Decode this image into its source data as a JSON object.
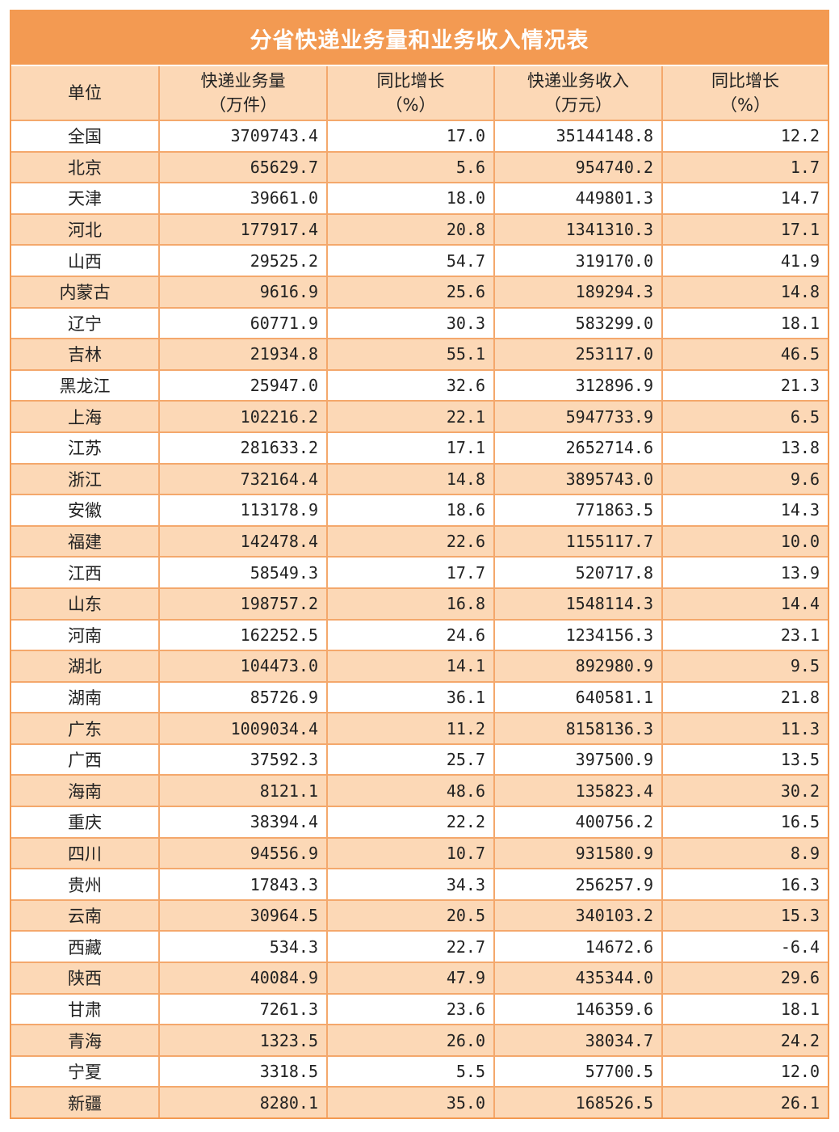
{
  "title": "分省快递业务量和业务收入情况表",
  "colors": {
    "accent": "#F39A52",
    "stripe": "#FCD8B6",
    "border": "#F4A86C"
  },
  "headers": [
    {
      "l1": "单位",
      "l2": ""
    },
    {
      "l1": "快递业务量",
      "l2": "（万件）"
    },
    {
      "l1": "同比增长",
      "l2": "（%）"
    },
    {
      "l1": "快递业务收入",
      "l2": "（万元）"
    },
    {
      "l1": "同比增长",
      "l2": "（%）"
    }
  ],
  "rows": [
    [
      "全国",
      "3709743.4",
      "17.0",
      "35144148.8",
      "12.2"
    ],
    [
      "北京",
      "65629.7",
      "5.6",
      "954740.2",
      "1.7"
    ],
    [
      "天津",
      "39661.0",
      "18.0",
      "449801.3",
      "14.7"
    ],
    [
      "河北",
      "177917.4",
      "20.8",
      "1341310.3",
      "17.1"
    ],
    [
      "山西",
      "29525.2",
      "54.7",
      "319170.0",
      "41.9"
    ],
    [
      "内蒙古",
      "9616.9",
      "25.6",
      "189294.3",
      "14.8"
    ],
    [
      "辽宁",
      "60771.9",
      "30.3",
      "583299.0",
      "18.1"
    ],
    [
      "吉林",
      "21934.8",
      "55.1",
      "253117.0",
      "46.5"
    ],
    [
      "黑龙江",
      "25947.0",
      "32.6",
      "312896.9",
      "21.3"
    ],
    [
      "上海",
      "102216.2",
      "22.1",
      "5947733.9",
      "6.5"
    ],
    [
      "江苏",
      "281633.2",
      "17.1",
      "2652714.6",
      "13.8"
    ],
    [
      "浙江",
      "732164.4",
      "14.8",
      "3895743.0",
      "9.6"
    ],
    [
      "安徽",
      "113178.9",
      "18.6",
      "771863.5",
      "14.3"
    ],
    [
      "福建",
      "142478.4",
      "22.6",
      "1155117.7",
      "10.0"
    ],
    [
      "江西",
      "58549.3",
      "17.7",
      "520717.8",
      "13.9"
    ],
    [
      "山东",
      "198757.2",
      "16.8",
      "1548114.3",
      "14.4"
    ],
    [
      "河南",
      "162252.5",
      "24.6",
      "1234156.3",
      "23.1"
    ],
    [
      "湖北",
      "104473.0",
      "14.1",
      "892980.9",
      "9.5"
    ],
    [
      "湖南",
      "85726.9",
      "36.1",
      "640581.1",
      "21.8"
    ],
    [
      "广东",
      "1009034.4",
      "11.2",
      "8158136.3",
      "11.3"
    ],
    [
      "广西",
      "37592.3",
      "25.7",
      "397500.9",
      "13.5"
    ],
    [
      "海南",
      "8121.1",
      "48.6",
      "135823.4",
      "30.2"
    ],
    [
      "重庆",
      "38394.4",
      "22.2",
      "400756.2",
      "16.5"
    ],
    [
      "四川",
      "94556.9",
      "10.7",
      "931580.9",
      "8.9"
    ],
    [
      "贵州",
      "17843.3",
      "34.3",
      "256257.9",
      "16.3"
    ],
    [
      "云南",
      "30964.5",
      "20.5",
      "340103.2",
      "15.3"
    ],
    [
      "西藏",
      "534.3",
      "22.7",
      "14672.6",
      "-6.4"
    ],
    [
      "陕西",
      "40084.9",
      "47.9",
      "435344.0",
      "29.6"
    ],
    [
      "甘肃",
      "7261.3",
      "23.6",
      "146359.6",
      "18.1"
    ],
    [
      "青海",
      "1323.5",
      "26.0",
      "38034.7",
      "24.2"
    ],
    [
      "宁夏",
      "3318.5",
      "5.5",
      "57700.5",
      "12.0"
    ],
    [
      "新疆",
      "8280.1",
      "35.0",
      "168526.5",
      "26.1"
    ]
  ]
}
